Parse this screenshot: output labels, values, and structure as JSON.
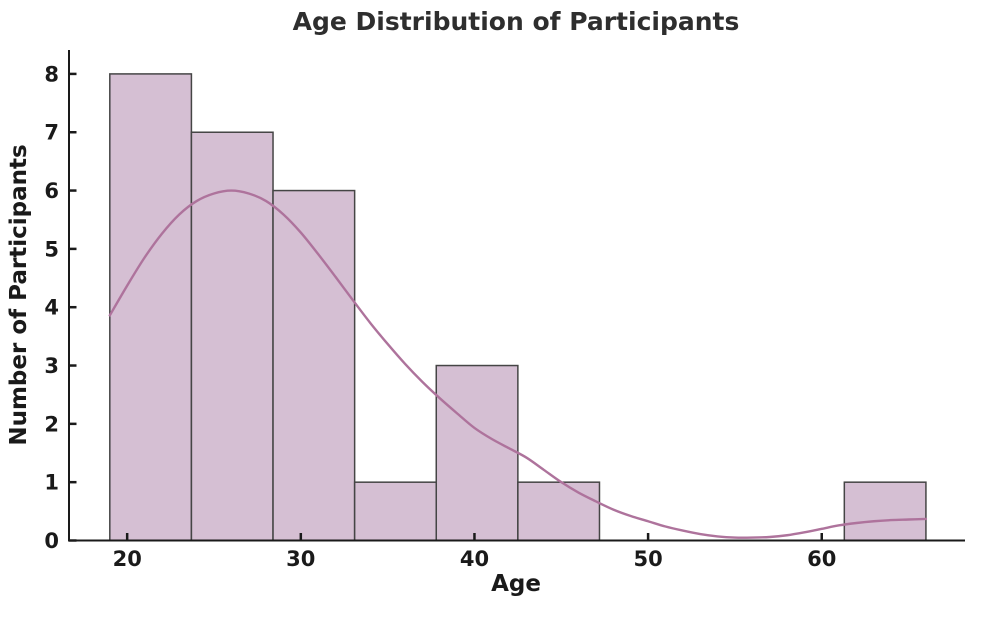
{
  "chart_data": {
    "type": "histogram",
    "overlay": "kde",
    "title": "Age Distribution of Participants",
    "xlabel": "Age",
    "ylabel": "Number of Participants",
    "bin_edges": [
      19.0,
      23.7,
      28.4,
      33.1,
      37.8,
      42.5,
      47.2,
      51.9,
      56.6,
      61.3,
      66.0
    ],
    "counts": [
      8,
      7,
      6,
      1,
      3,
      1,
      0,
      0,
      0,
      1
    ],
    "kde_curve": [
      [
        19,
        3.86
      ],
      [
        20,
        4.37
      ],
      [
        21,
        4.85
      ],
      [
        22,
        5.26
      ],
      [
        23,
        5.59
      ],
      [
        24,
        5.82
      ],
      [
        25,
        5.95
      ],
      [
        26,
        6.0
      ],
      [
        27,
        5.95
      ],
      [
        28,
        5.82
      ],
      [
        29,
        5.59
      ],
      [
        30,
        5.28
      ],
      [
        31,
        4.91
      ],
      [
        32,
        4.52
      ],
      [
        33,
        4.12
      ],
      [
        34,
        3.73
      ],
      [
        35,
        3.37
      ],
      [
        36,
        3.03
      ],
      [
        37,
        2.72
      ],
      [
        38,
        2.44
      ],
      [
        39,
        2.18
      ],
      [
        40,
        1.93
      ],
      [
        41,
        1.74
      ],
      [
        42,
        1.58
      ],
      [
        43,
        1.42
      ],
      [
        44,
        1.21
      ],
      [
        45,
        1.0
      ],
      [
        46,
        0.82
      ],
      [
        47,
        0.67
      ],
      [
        48,
        0.53
      ],
      [
        49,
        0.42
      ],
      [
        50,
        0.33
      ],
      [
        51,
        0.24
      ],
      [
        52,
        0.17
      ],
      [
        53,
        0.11
      ],
      [
        54,
        0.07
      ],
      [
        55,
        0.05
      ],
      [
        56,
        0.05
      ],
      [
        57,
        0.06
      ],
      [
        58,
        0.09
      ],
      [
        59,
        0.14
      ],
      [
        60,
        0.2
      ],
      [
        61,
        0.26
      ],
      [
        62,
        0.3
      ],
      [
        63,
        0.33
      ],
      [
        64,
        0.35
      ],
      [
        65,
        0.36
      ],
      [
        66,
        0.37
      ]
    ],
    "x_ticks": [
      20,
      30,
      40,
      50,
      60
    ],
    "y_ticks": [
      0,
      1,
      2,
      3,
      4,
      5,
      6,
      7,
      8
    ],
    "xlim": [
      16.65,
      68.25
    ],
    "ylim": [
      0,
      8.41
    ],
    "grid": false,
    "legend": null,
    "spines": [
      "left",
      "bottom"
    ],
    "tick_direction": "in",
    "colors": {
      "bar_fill": "#d5bfd3",
      "bar_edge": "#454545",
      "kde_line": "#ae739c",
      "axis": "#1a1a1a",
      "tick_text": "#1a1a1a",
      "title_text": "#2e2e2e",
      "background": "#ffffff"
    }
  }
}
